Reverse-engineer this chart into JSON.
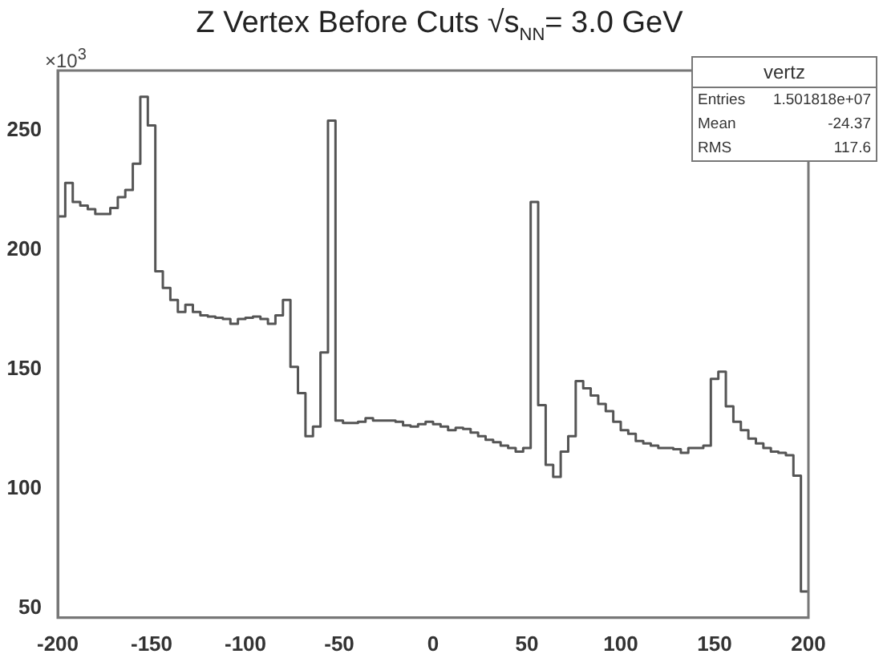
{
  "chart_data": {
    "type": "histogram",
    "title": "Z Vertex Before Cuts √s$_{NN}$= 3.0 GeV",
    "bins": [
      -200,
      -196,
      -192,
      -188,
      -184,
      -180,
      -176,
      -172,
      -168,
      -164,
      -160,
      -156,
      -152,
      -148,
      -144,
      -140,
      -136,
      -132,
      -128,
      -124,
      -120,
      -116,
      -112,
      -108,
      -104,
      -100,
      -96,
      -92,
      -88,
      -84,
      -80,
      -76,
      -72,
      -68,
      -64,
      -60,
      -56,
      -52,
      -48,
      -44,
      -40,
      -36,
      -32,
      -28,
      -24,
      -20,
      -16,
      -12,
      -8,
      -4,
      0,
      4,
      8,
      12,
      16,
      20,
      24,
      28,
      32,
      36,
      40,
      44,
      48,
      52,
      56,
      60,
      64,
      68,
      72,
      76,
      80,
      84,
      88,
      92,
      96,
      100,
      104,
      108,
      112,
      116,
      120,
      124,
      128,
      132,
      136,
      140,
      144,
      148,
      152,
      156,
      160,
      164,
      168,
      172,
      176,
      180,
      184,
      188,
      192,
      196,
      200
    ],
    "values": [
      214,
      228,
      220,
      218.5,
      217,
      215,
      215,
      217.5,
      222,
      225,
      236,
      264,
      252,
      191,
      184,
      179,
      174,
      177,
      174,
      172.5,
      172,
      171.5,
      171,
      169,
      171,
      171.5,
      172,
      171,
      169,
      172.5,
      179,
      151,
      140,
      122,
      126,
      157,
      254,
      128.5,
      127.5,
      127.5,
      128,
      129.5,
      128.5,
      128.5,
      128.5,
      128,
      126.5,
      126,
      127,
      128,
      127,
      126,
      124.5,
      125.5,
      125,
      123.5,
      122,
      120.5,
      119.5,
      118,
      117,
      115.5,
      117,
      220,
      135,
      110,
      105,
      115.5,
      122,
      145,
      142,
      139,
      135.5,
      132.5,
      128,
      124.5,
      123,
      120,
      119,
      118,
      117,
      117,
      116.5,
      115,
      117,
      117,
      118,
      146,
      149,
      134.5,
      128,
      124.5,
      121,
      119,
      117,
      115.5,
      115,
      114,
      105.5,
      57
    ],
    "color": "#555555",
    "xlim": [
      -200,
      200
    ],
    "ylim": [
      46,
      275
    ],
    "xticks": [
      -200,
      -150,
      -100,
      -50,
      0,
      50,
      100,
      150,
      200
    ],
    "yticks": [
      50,
      100,
      150,
      200,
      250
    ],
    "annotations": [
      "×10$^{3}$",
      "vertz",
      "Entries",
      "1.501818e+07",
      "Mean",
      "-24.37",
      "RMS",
      "117.6"
    ],
    "grid": false,
    "legend": false
  }
}
